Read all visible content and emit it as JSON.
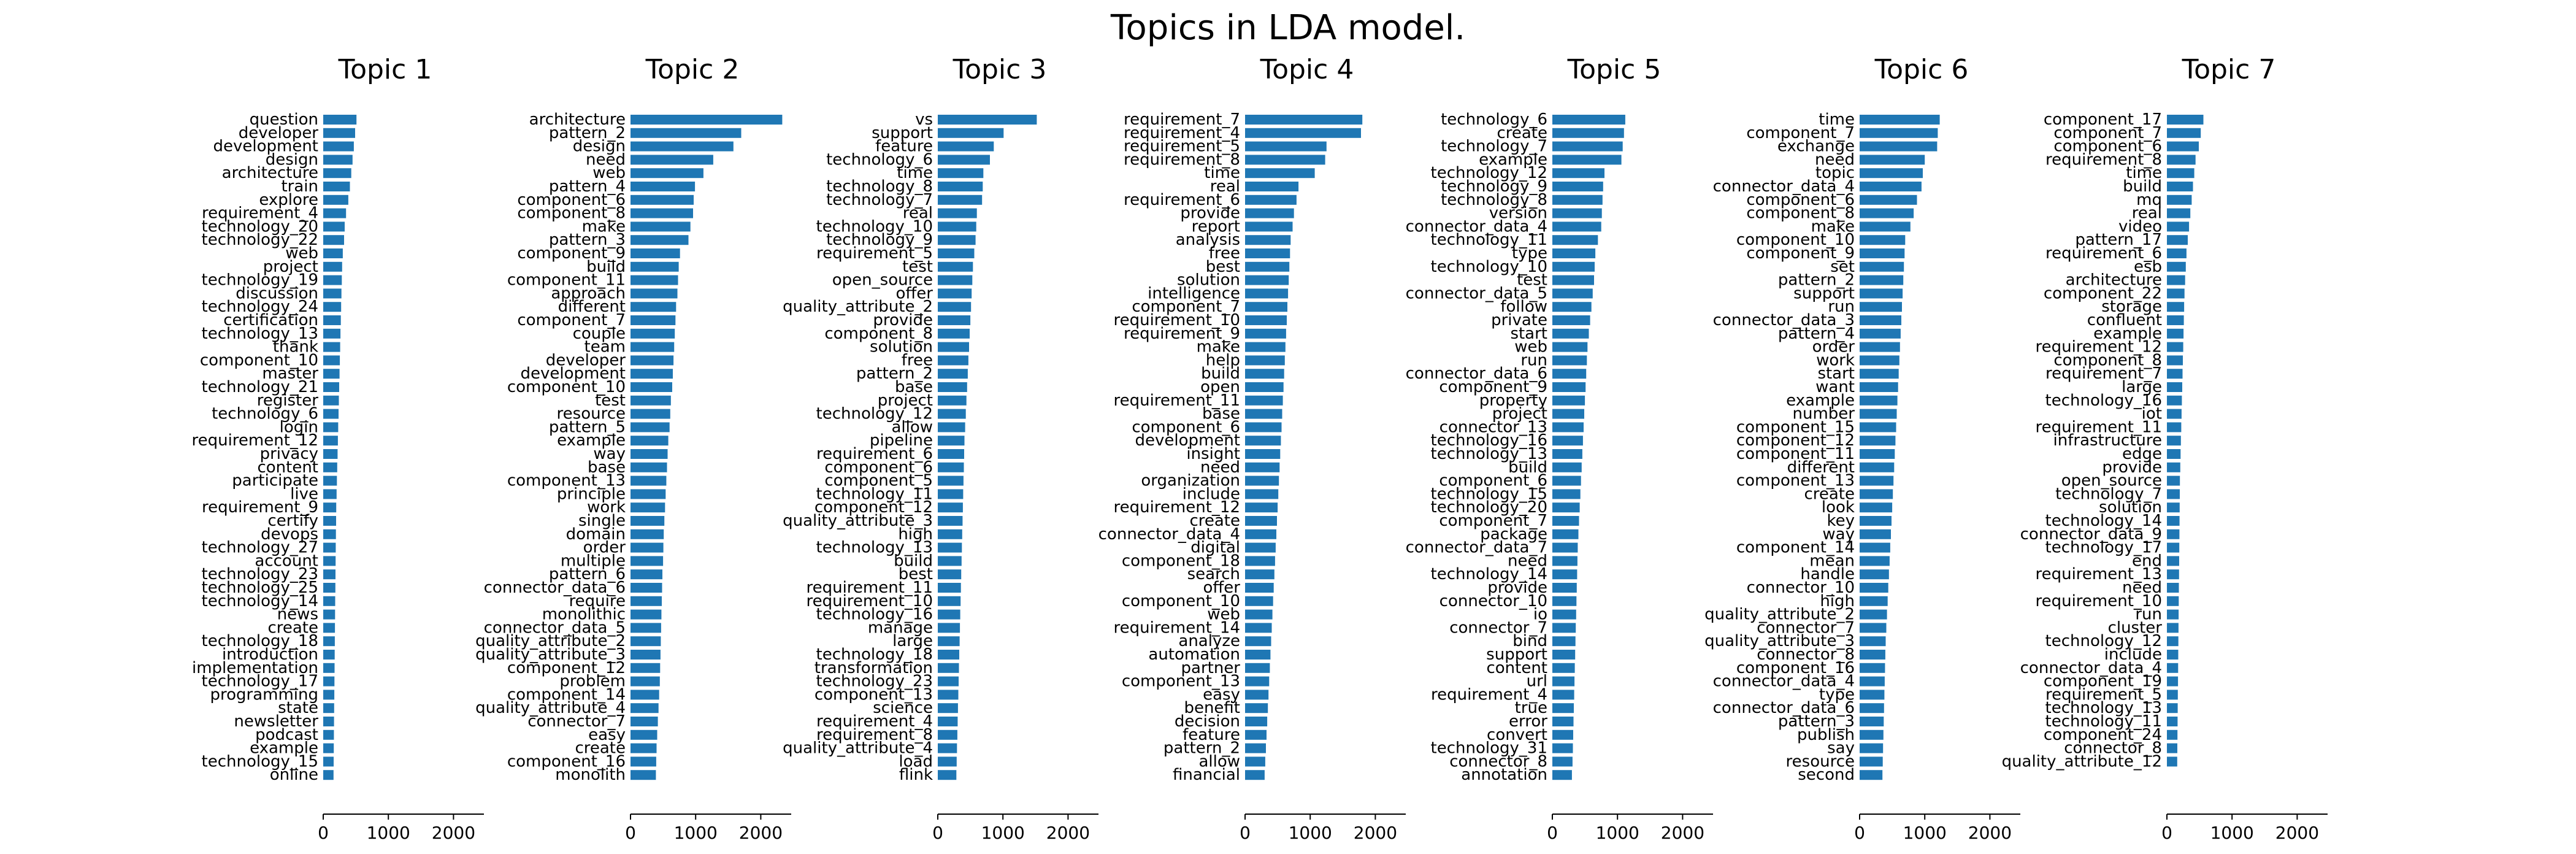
{
  "title": "Topics in LDA model.",
  "bar_color": "#1f77b4",
  "chart_data": [
    {
      "type": "bar",
      "orientation": "horizontal",
      "title": "Topic 1",
      "xlim": [
        0,
        2400
      ],
      "xticks": [
        0,
        1000,
        2000
      ],
      "categories": [
        "question",
        "developer",
        "development",
        "design",
        "architecture",
        "train",
        "explore",
        "requirement_4",
        "technology_20",
        "technology_22",
        "web",
        "project",
        "technology_19",
        "discussion",
        "technology_24",
        "certification",
        "technology_13",
        "thank",
        "component_10",
        "master",
        "technology_21",
        "register",
        "technology_6",
        "login",
        "requirement_12",
        "privacy",
        "content",
        "participate",
        "live",
        "requirement_9",
        "certify",
        "devops",
        "technology_27",
        "account",
        "technology_23",
        "technology_25",
        "technology_14",
        "news",
        "create",
        "technology_18",
        "introduction",
        "implementation",
        "technology_17",
        "programming",
        "state",
        "newsletter",
        "podcast",
        "example",
        "technology_15",
        "online"
      ],
      "values": [
        510,
        490,
        470,
        450,
        430,
        410,
        385,
        350,
        330,
        320,
        300,
        290,
        285,
        280,
        275,
        270,
        265,
        260,
        255,
        250,
        245,
        240,
        235,
        230,
        225,
        220,
        215,
        210,
        205,
        200,
        198,
        195,
        192,
        190,
        188,
        186,
        184,
        182,
        180,
        178,
        176,
        174,
        172,
        170,
        168,
        166,
        164,
        162,
        160,
        158
      ]
    },
    {
      "type": "bar",
      "orientation": "horizontal",
      "title": "Topic 2",
      "xlim": [
        0,
        2400
      ],
      "xticks": [
        0,
        1000,
        2000
      ],
      "categories": [
        "architecture",
        "pattern_2",
        "design",
        "need",
        "web",
        "pattern_4",
        "component_6",
        "component_8",
        "make",
        "pattern_3",
        "component_9",
        "build",
        "component_11",
        "approach",
        "different",
        "component_7",
        "couple",
        "team",
        "developer",
        "development",
        "component_10",
        "test",
        "resource",
        "pattern_5",
        "example",
        "way",
        "base",
        "component_13",
        "principle",
        "work",
        "single",
        "domain",
        "order",
        "multiple",
        "pattern_6",
        "connector_data_6",
        "require",
        "monolithic",
        "connector_data_5",
        "quality_attribute_2",
        "quality_attribute_3",
        "component_12",
        "problem",
        "component_14",
        "quality_attribute_4",
        "connector_7",
        "easy",
        "create",
        "component_16",
        "monolith"
      ],
      "values": [
        2330,
        1700,
        1580,
        1270,
        1120,
        990,
        970,
        960,
        920,
        890,
        760,
        740,
        730,
        720,
        700,
        690,
        680,
        670,
        660,
        650,
        640,
        620,
        610,
        600,
        580,
        570,
        560,
        550,
        540,
        530,
        520,
        510,
        505,
        500,
        490,
        485,
        480,
        475,
        470,
        465,
        460,
        455,
        450,
        440,
        430,
        420,
        410,
        400,
        395,
        390
      ]
    },
    {
      "type": "bar",
      "orientation": "horizontal",
      "title": "Topic 3",
      "xlim": [
        0,
        2400
      ],
      "xticks": [
        0,
        1000,
        2000
      ],
      "categories": [
        "vs",
        "support",
        "feature",
        "technology_6",
        "time",
        "technology_8",
        "technology_7",
        "real",
        "technology_10",
        "technology_9",
        "requirement_5",
        "test",
        "open_source",
        "offer",
        "quality_attribute_2",
        "provide",
        "component_8",
        "solution",
        "free",
        "pattern_2",
        "base",
        "project",
        "technology_12",
        "allow",
        "pipeline",
        "requirement_6",
        "component_6",
        "component_5",
        "technology_11",
        "component_12",
        "quality_attribute_3",
        "high",
        "technology_13",
        "build",
        "best",
        "requirement_11",
        "requirement_10",
        "technology_16",
        "manage",
        "large",
        "technology_18",
        "transformation",
        "technology_23",
        "component_13",
        "science",
        "requirement_4",
        "requirement_8",
        "quality_attribute_4",
        "load",
        "flink"
      ],
      "values": [
        1520,
        1010,
        860,
        800,
        700,
        690,
        680,
        600,
        590,
        580,
        560,
        540,
        530,
        520,
        510,
        500,
        490,
        480,
        470,
        460,
        450,
        440,
        430,
        420,
        410,
        405,
        400,
        395,
        390,
        385,
        380,
        375,
        370,
        365,
        360,
        355,
        350,
        345,
        340,
        335,
        330,
        325,
        320,
        315,
        310,
        305,
        300,
        295,
        290,
        285
      ]
    },
    {
      "type": "bar",
      "orientation": "horizontal",
      "title": "Topic 4",
      "xlim": [
        0,
        2400
      ],
      "xticks": [
        0,
        1000,
        2000
      ],
      "categories": [
        "requirement_7",
        "requirement_4",
        "requirement_5",
        "requirement_8",
        "time",
        "real",
        "requirement_6",
        "provide",
        "report",
        "analysis",
        "free",
        "best",
        "solution",
        "intelligence",
        "component_7",
        "requirement_10",
        "requirement_9",
        "make",
        "help",
        "build",
        "open",
        "requirement_11",
        "base",
        "component_6",
        "development",
        "insight",
        "need",
        "organization",
        "include",
        "requirement_12",
        "create",
        "connector_data_4",
        "digital",
        "component_18",
        "search",
        "offer",
        "component_10",
        "web",
        "requirement_14",
        "analyze",
        "automation",
        "partner",
        "component_13",
        "easy",
        "benefit",
        "decision",
        "feature",
        "pattern_2",
        "allow",
        "financial"
      ],
      "values": [
        1800,
        1780,
        1250,
        1230,
        1070,
        820,
        790,
        750,
        730,
        700,
        690,
        680,
        670,
        660,
        650,
        640,
        630,
        620,
        610,
        600,
        590,
        580,
        570,
        560,
        550,
        540,
        530,
        520,
        510,
        500,
        490,
        480,
        470,
        460,
        450,
        440,
        430,
        420,
        410,
        400,
        390,
        380,
        370,
        360,
        350,
        340,
        330,
        320,
        310,
        300
      ]
    },
    {
      "type": "bar",
      "orientation": "horizontal",
      "title": "Topic 5",
      "xlim": [
        0,
        2400
      ],
      "xticks": [
        0,
        1000,
        2000
      ],
      "categories": [
        "technology_6",
        "create",
        "technology_7",
        "example",
        "technology_12",
        "technology_9",
        "technology_8",
        "version",
        "connector_data_4",
        "technology_11",
        "type",
        "technology_10",
        "test",
        "connector_data_5",
        "follow",
        "private",
        "start",
        "web",
        "run",
        "connector_data_6",
        "component_9",
        "property",
        "project",
        "connector_13",
        "technology_16",
        "technology_13",
        "build",
        "component_6",
        "technology_15",
        "technology_20",
        "component_7",
        "package",
        "connector_data_7",
        "need",
        "technology_14",
        "provide",
        "connector_10",
        "io",
        "connector_7",
        "bind",
        "support",
        "content",
        "url",
        "requirement_4",
        "true",
        "error",
        "convert",
        "technology_31",
        "connector_8",
        "annotation"
      ],
      "values": [
        1120,
        1100,
        1080,
        1060,
        800,
        780,
        770,
        760,
        750,
        700,
        660,
        650,
        640,
        620,
        600,
        580,
        560,
        540,
        530,
        520,
        510,
        500,
        490,
        480,
        470,
        460,
        450,
        440,
        430,
        420,
        410,
        400,
        390,
        385,
        380,
        375,
        370,
        365,
        360,
        355,
        350,
        345,
        340,
        335,
        330,
        325,
        320,
        315,
        310,
        300
      ]
    },
    {
      "type": "bar",
      "orientation": "horizontal",
      "title": "Topic 6",
      "xlim": [
        0,
        2400
      ],
      "xticks": [
        0,
        1000,
        2000
      ],
      "categories": [
        "time",
        "component_7",
        "exchange",
        "need",
        "topic",
        "connector_data_4",
        "component_6",
        "component_8",
        "make",
        "component_10",
        "component_9",
        "set",
        "pattern_2",
        "support",
        "run",
        "connector_data_3",
        "pattern_4",
        "order",
        "work",
        "start",
        "want",
        "example",
        "number",
        "component_15",
        "component_12",
        "component_11",
        "different",
        "component_13",
        "create",
        "look",
        "key",
        "way",
        "component_14",
        "mean",
        "handle",
        "connector_10",
        "high",
        "quality_attribute_2",
        "connector_7",
        "quality_attribute_3",
        "connector_8",
        "component_16",
        "connector_data_4",
        "type",
        "connector_data_6",
        "pattern_3",
        "publish",
        "say",
        "resource",
        "second"
      ],
      "values": [
        1230,
        1200,
        1190,
        1000,
        970,
        950,
        880,
        830,
        780,
        700,
        690,
        680,
        670,
        660,
        650,
        640,
        630,
        620,
        610,
        600,
        590,
        580,
        570,
        560,
        550,
        540,
        530,
        520,
        510,
        500,
        490,
        480,
        470,
        460,
        450,
        440,
        430,
        420,
        410,
        400,
        395,
        390,
        385,
        380,
        375,
        370,
        365,
        360,
        355,
        350
      ]
    },
    {
      "type": "bar",
      "orientation": "horizontal",
      "title": "Topic 7",
      "xlim": [
        0,
        2400
      ],
      "xticks": [
        0,
        1000,
        2000
      ],
      "categories": [
        "component_17",
        "component_7",
        "component_6",
        "requirement_8",
        "time",
        "build",
        "mq",
        "real",
        "video",
        "pattern_17",
        "requirement_6",
        "esb",
        "architecture",
        "component_22",
        "storage",
        "confluent",
        "example",
        "requirement_12",
        "component_8",
        "requirement_7",
        "large",
        "technology_16",
        "iot",
        "requirement_11",
        "infrastructure",
        "edge",
        "provide",
        "open_source",
        "technology_7",
        "solution",
        "technology_14",
        "connector_data_9",
        "technology_17",
        "end",
        "requirement_13",
        "need",
        "requirement_10",
        "run",
        "cluster",
        "technology_12",
        "include",
        "connector_data_4",
        "component_19",
        "requirement_5",
        "technology_13",
        "technology_11",
        "component_24",
        "connector_8",
        "quality_attribute_12"
      ],
      "values": [
        560,
        520,
        490,
        440,
        420,
        400,
        380,
        360,
        340,
        320,
        300,
        290,
        280,
        270,
        265,
        260,
        255,
        250,
        245,
        240,
        235,
        230,
        225,
        220,
        215,
        210,
        205,
        200,
        198,
        196,
        194,
        192,
        190,
        188,
        186,
        184,
        182,
        180,
        178,
        176,
        174,
        172,
        170,
        168,
        166,
        164,
        162,
        160,
        158
      ]
    }
  ]
}
